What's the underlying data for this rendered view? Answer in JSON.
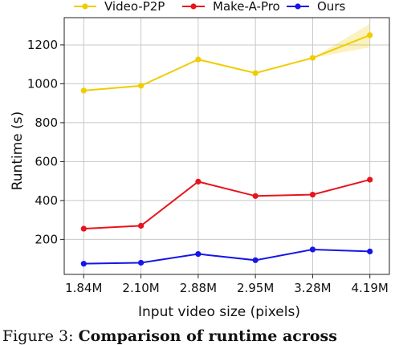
{
  "chart_data": {
    "type": "line",
    "x": [
      "1.84M",
      "2.10M",
      "2.88M",
      "2.95M",
      "3.28M",
      "4.19M"
    ],
    "xlabel": "Input video size (pixels)",
    "ylabel": "Runtime (s)",
    "ylim": [
      20,
      1340
    ],
    "yticks": [
      200,
      400,
      600,
      800,
      1000,
      1200
    ],
    "grid": true,
    "legend": "top",
    "series": [
      {
        "name": "Video-P2P",
        "color": "#f0cc00",
        "values": [
          965,
          990,
          1125,
          1055,
          1133,
          1250
        ],
        "band": {
          "from_index": 4,
          "low": [
            1133,
            1188
          ],
          "high": [
            1133,
            1308
          ]
        }
      },
      {
        "name": "Make-A-Pro",
        "color": "#e8141c",
        "values": [
          255,
          270,
          497,
          423,
          430,
          507
        ]
      },
      {
        "name": "Ours",
        "color": "#1616e6",
        "values": [
          75,
          80,
          125,
          93,
          148,
          138
        ]
      }
    ]
  },
  "caption": {
    "prefix": "Figure 3: ",
    "bold": "Comparison of runtime across"
  }
}
